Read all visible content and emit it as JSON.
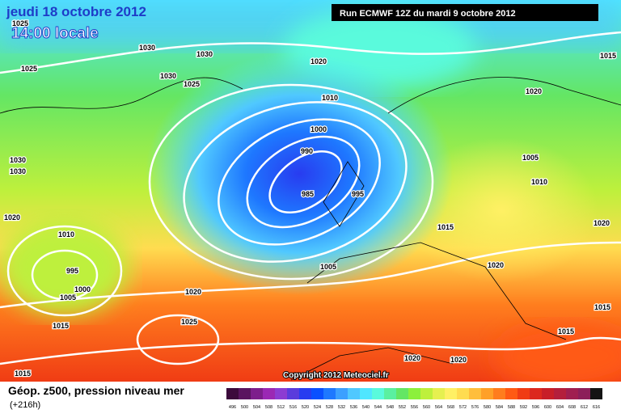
{
  "header": {
    "date": "jeudi 18 octobre 2012",
    "time": "14:00 locale",
    "run": "Run ECMWF 12Z du mardi 9 octobre 2012"
  },
  "copyright": "Copyright 2012 Meteociel.fr",
  "legend": {
    "title": "Géop. z500, pression niveau mer",
    "subtitle": "(+216h)",
    "scale": [
      {
        "value": 496,
        "color": "#3c0a3c"
      },
      {
        "value": 500,
        "color": "#5a1460"
      },
      {
        "value": 504,
        "color": "#7d1e8c"
      },
      {
        "value": 508,
        "color": "#9b28b4"
      },
      {
        "value": 512,
        "color": "#8c3cd2"
      },
      {
        "value": 516,
        "color": "#5a3cdc"
      },
      {
        "value": 520,
        "color": "#283cf0"
      },
      {
        "value": 524,
        "color": "#0a50ff"
      },
      {
        "value": 528,
        "color": "#1e78ff"
      },
      {
        "value": 532,
        "color": "#3ca0ff"
      },
      {
        "value": 536,
        "color": "#50c8ff"
      },
      {
        "value": 540,
        "color": "#50e6ff"
      },
      {
        "value": 544,
        "color": "#5afadc"
      },
      {
        "value": 548,
        "color": "#5af0a0"
      },
      {
        "value": 552,
        "color": "#64e664"
      },
      {
        "value": 556,
        "color": "#8cf03c"
      },
      {
        "value": 560,
        "color": "#bef03c"
      },
      {
        "value": 564,
        "color": "#e6f050"
      },
      {
        "value": 568,
        "color": "#fff064"
      },
      {
        "value": 572,
        "color": "#ffdc50"
      },
      {
        "value": 576,
        "color": "#ffbe3c"
      },
      {
        "value": 580,
        "color": "#ffa028"
      },
      {
        "value": 584,
        "color": "#ff7d1e"
      },
      {
        "value": 588,
        "color": "#ff5a14"
      },
      {
        "value": 592,
        "color": "#f03c14"
      },
      {
        "value": 596,
        "color": "#dc281e"
      },
      {
        "value": 600,
        "color": "#c81e28"
      },
      {
        "value": 604,
        "color": "#b41e3c"
      },
      {
        "value": 608,
        "color": "#a01e50"
      },
      {
        "value": 612,
        "color": "#8c1e5a"
      },
      {
        "value": 616,
        "color": "#141414"
      }
    ]
  },
  "isobar_labels": [
    1025,
    1030,
    1030,
    1025,
    1030,
    1025,
    1020,
    1015,
    1010,
    1020,
    1000,
    990,
    1005,
    1030,
    1030,
    1010,
    985,
    995,
    1020,
    1010,
    1015,
    1020,
    995,
    1005,
    1020,
    1000,
    1005,
    1020,
    1015,
    1025,
    1015,
    1015,
    1020,
    1020,
    1015
  ]
}
